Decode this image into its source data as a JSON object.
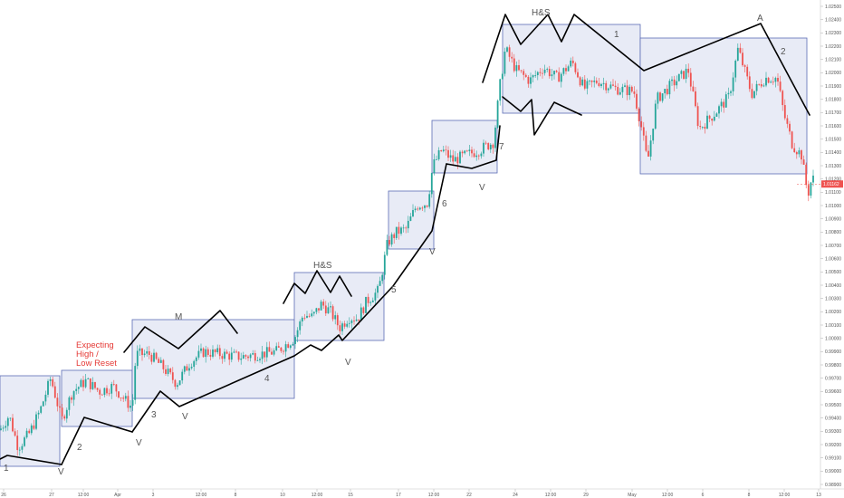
{
  "chart_data": {
    "type": "candlestick",
    "title": "",
    "xlabel": "",
    "ylabel": "",
    "ylim": [
      0.98875,
      1.02575
    ],
    "price_ticks": [
      "1.02500",
      "1.02400",
      "1.02300",
      "1.02200",
      "1.02100",
      "1.02000",
      "1.01900",
      "1.01800",
      "1.01700",
      "1.01600",
      "1.01500",
      "1.01400",
      "1.01300",
      "1.01200",
      "1.01100",
      "1.01000",
      "1.00900",
      "1.00800",
      "1.00700",
      "1.00600",
      "1.00500",
      "1.00400",
      "1.00300",
      "1.00200",
      "1.00100",
      "1.00000",
      "0.99900",
      "0.99800",
      "0.99700",
      "0.99600",
      "0.99500",
      "0.99400",
      "0.99300",
      "0.99200",
      "0.99100",
      "0.99000",
      "0.98900"
    ],
    "time_ticks": [
      "26",
      "27",
      "12:00",
      "Apr",
      "3",
      "12:00",
      "8",
      "10",
      "12:00",
      "15",
      "17",
      "12:00",
      "22",
      "24",
      "12:00",
      "29",
      "May",
      "12:00",
      "6",
      "8",
      "12:00",
      "13"
    ],
    "last_price": "1.01162",
    "colors": {
      "up": "#26a69a",
      "down": "#ef5350",
      "box_fill": "#e8ebf6",
      "box_stroke": "#5b6bb5",
      "line": "#000000",
      "last_price": "#ef5350"
    },
    "price_path": [
      {
        "x": 0,
        "y": 0.9931
      },
      {
        "x": 10,
        "y": 0.9942
      },
      {
        "x": 20,
        "y": 0.9918
      },
      {
        "x": 32,
        "y": 0.9928
      },
      {
        "x": 44,
        "y": 0.9945
      },
      {
        "x": 56,
        "y": 0.997
      },
      {
        "x": 63,
        "y": 0.9952
      },
      {
        "x": 68,
        "y": 0.9938
      },
      {
        "x": 80,
        "y": 0.996
      },
      {
        "x": 95,
        "y": 0.9968
      },
      {
        "x": 110,
        "y": 0.996
      },
      {
        "x": 125,
        "y": 0.9964
      },
      {
        "x": 140,
        "y": 0.9952
      },
      {
        "x": 146,
        "y": 0.9948
      },
      {
        "x": 150,
        "y": 0.9988
      },
      {
        "x": 165,
        "y": 0.9988
      },
      {
        "x": 180,
        "y": 0.9978
      },
      {
        "x": 195,
        "y": 0.9966
      },
      {
        "x": 210,
        "y": 0.9982
      },
      {
        "x": 225,
        "y": 0.999
      },
      {
        "x": 245,
        "y": 0.9988
      },
      {
        "x": 265,
        "y": 0.9986
      },
      {
        "x": 285,
        "y": 0.9988
      },
      {
        "x": 305,
        "y": 0.999
      },
      {
        "x": 325,
        "y": 1.0
      },
      {
        "x": 335,
        "y": 1.0018
      },
      {
        "x": 345,
        "y": 1.0016
      },
      {
        "x": 355,
        "y": 1.0026
      },
      {
        "x": 365,
        "y": 1.002
      },
      {
        "x": 375,
        "y": 1.0008
      },
      {
        "x": 385,
        "y": 1.0016
      },
      {
        "x": 395,
        "y": 1.0015
      },
      {
        "x": 405,
        "y": 1.0028
      },
      {
        "x": 418,
        "y": 1.0036
      },
      {
        "x": 428,
        "y": 1.0072
      },
      {
        "x": 438,
        "y": 1.008
      },
      {
        "x": 448,
        "y": 1.0082
      },
      {
        "x": 460,
        "y": 1.01
      },
      {
        "x": 472,
        "y": 1.0102
      },
      {
        "x": 478,
        "y": 1.013
      },
      {
        "x": 488,
        "y": 1.0142
      },
      {
        "x": 500,
        "y": 1.0134
      },
      {
        "x": 515,
        "y": 1.0138
      },
      {
        "x": 530,
        "y": 1.0142
      },
      {
        "x": 545,
        "y": 1.0148
      },
      {
        "x": 552,
        "y": 1.019
      },
      {
        "x": 558,
        "y": 1.0218
      },
      {
        "x": 570,
        "y": 1.0202
      },
      {
        "x": 585,
        "y": 1.0194
      },
      {
        "x": 600,
        "y": 1.0204
      },
      {
        "x": 615,
        "y": 1.0196
      },
      {
        "x": 632,
        "y": 1.0208
      },
      {
        "x": 645,
        "y": 1.0188
      },
      {
        "x": 660,
        "y": 1.0194
      },
      {
        "x": 680,
        "y": 1.0188
      },
      {
        "x": 700,
        "y": 1.0186
      },
      {
        "x": 708,
        "y": 1.016
      },
      {
        "x": 715,
        "y": 1.0132
      },
      {
        "x": 725,
        "y": 1.018
      },
      {
        "x": 740,
        "y": 1.019
      },
      {
        "x": 760,
        "y": 1.0202
      },
      {
        "x": 772,
        "y": 1.0158
      },
      {
        "x": 790,
        "y": 1.017
      },
      {
        "x": 805,
        "y": 1.0182
      },
      {
        "x": 815,
        "y": 1.0218
      },
      {
        "x": 830,
        "y": 1.0184
      },
      {
        "x": 845,
        "y": 1.0196
      },
      {
        "x": 858,
        "y": 1.0196
      },
      {
        "x": 866,
        "y": 1.0168
      },
      {
        "x": 875,
        "y": 1.0146
      },
      {
        "x": 885,
        "y": 1.0138
      },
      {
        "x": 892,
        "y": 1.0108
      },
      {
        "x": 897,
        "y": 1.0122
      },
      {
        "x": 900,
        "y": 1.01162
      }
    ]
  },
  "annotations": {
    "labels": [
      {
        "id": "label-1-first",
        "text": "1"
      },
      {
        "id": "label-v-1",
        "text": "V"
      },
      {
        "id": "label-2-first",
        "text": "2"
      },
      {
        "id": "label-expecting-line1",
        "text": "Expecting"
      },
      {
        "id": "label-expecting-line2",
        "text": "High /"
      },
      {
        "id": "label-expecting-line3",
        "text": "Low Reset"
      },
      {
        "id": "label-v-2",
        "text": "V"
      },
      {
        "id": "label-3",
        "text": "3"
      },
      {
        "id": "label-v-3",
        "text": "V"
      },
      {
        "id": "label-m",
        "text": "M"
      },
      {
        "id": "label-4",
        "text": "4"
      },
      {
        "id": "label-hs-1",
        "text": "H&S"
      },
      {
        "id": "label-v-4",
        "text": "V"
      },
      {
        "id": "label-5",
        "text": "5"
      },
      {
        "id": "label-v-5",
        "text": "V"
      },
      {
        "id": "label-6",
        "text": "6"
      },
      {
        "id": "label-7",
        "text": "7"
      },
      {
        "id": "label-v-6",
        "text": "V"
      },
      {
        "id": "label-hs-2",
        "text": "H&S"
      },
      {
        "id": "label-1-second",
        "text": "1"
      },
      {
        "id": "label-a",
        "text": "A"
      },
      {
        "id": "label-2-second",
        "text": "2"
      }
    ]
  }
}
